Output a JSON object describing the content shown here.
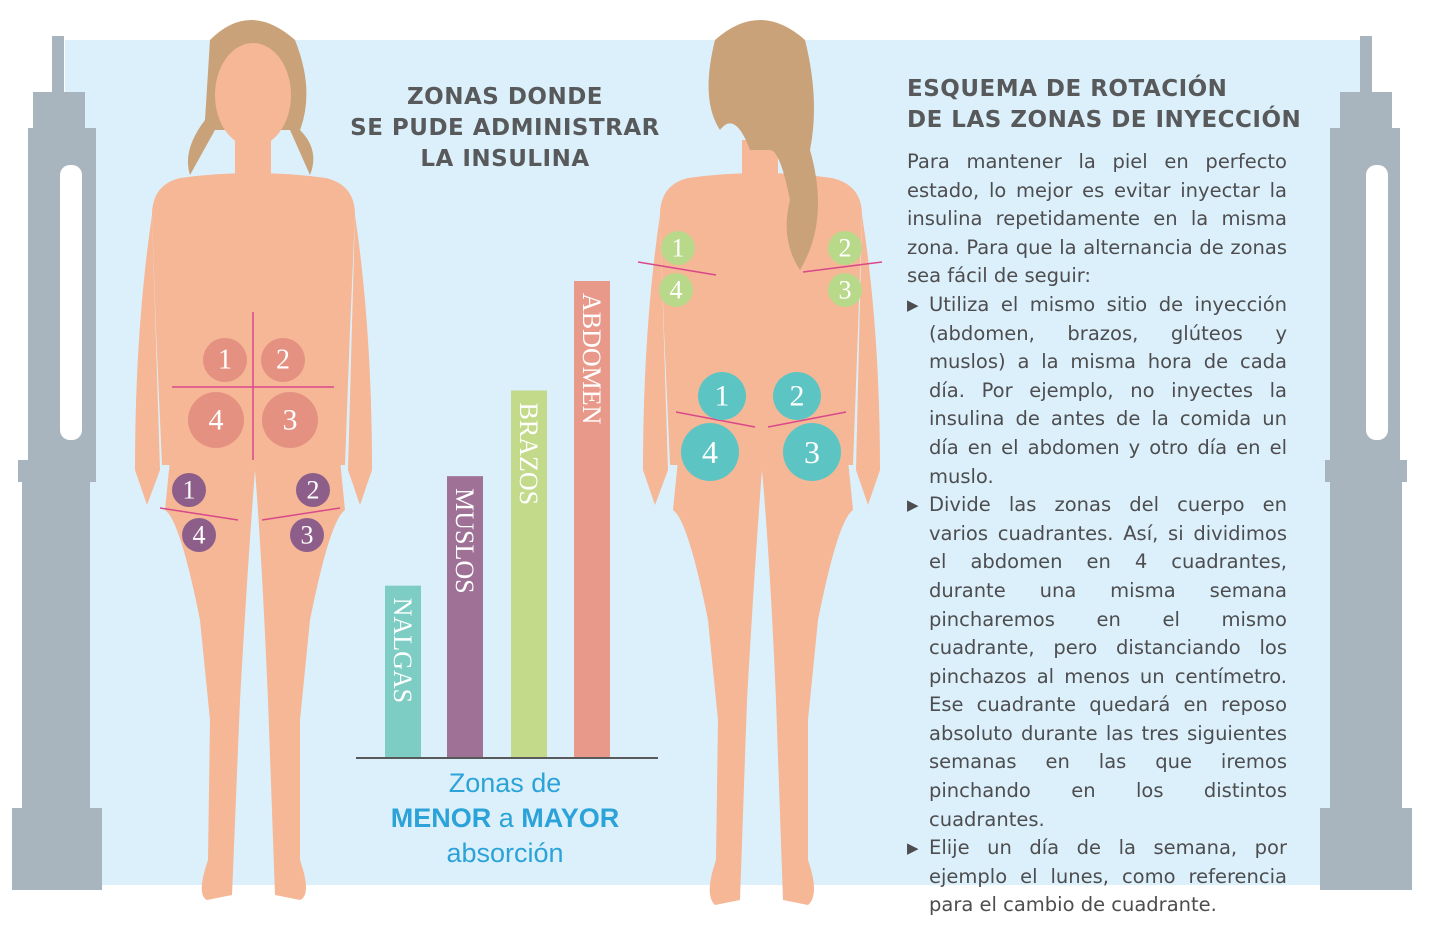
{
  "left_title": [
    "ZONAS DONDE",
    "SE PUDE ADMINISTRAR",
    "LA INSULINA"
  ],
  "right_title": [
    "ESQUEMA DE ROTACIÓN",
    "DE LAS ZONAS DE INYECCIÓN"
  ],
  "intro": "Para mantener la piel en perfecto estado, lo mejor es evitar inyectar la insulina repetidamente en la misma zona. Para que la alternancia de zonas sea fácil de seguir:",
  "bullets": [
    "Utiliza el mismo sitio de inyección (abdomen, brazos, glúteos y muslos) a la misma hora de cada día. Por ejemplo, no inyectes la insulina de antes de la comida un día en el abdomen y otro día en el muslo.",
    "Divide las zonas del cuerpo en varios cuadrantes. Así, si dividimos el abdomen en 4 cuadrantes, durante una misma semana pincharemos en el mismo cuadrante, pero distanciando los pinchazos al menos un centímetro. Ese cuadrante quedará en reposo absoluto durante las tres siguientes semanas en las que iremos pinchando en los distintos cuadrantes.",
    "Elije un día de la semana, por ejemplo el lunes, como referencia para el cambio de cuadrante."
  ],
  "bullet_icon": "triangle-right-icon",
  "caption": {
    "line1": "Zonas de",
    "menor": "MENOR",
    "a": "a",
    "mayor": "MAYOR",
    "line3": "absorción"
  },
  "chart_data": {
    "type": "bar",
    "categories": [
      "NALGAS",
      "MUSLOS",
      "BRAZOS",
      "ABDOMEN"
    ],
    "values": [
      0.36,
      0.59,
      0.77,
      1.0
    ],
    "colors": [
      "#7ecdc4",
      "#a07196",
      "#c3da8a",
      "#e9998a"
    ],
    "title": "",
    "xlabel": "",
    "ylabel": ""
  },
  "zones": {
    "front_abdomen": [
      "1",
      "2",
      "4",
      "3"
    ],
    "front_thighs": [
      "1",
      "2",
      "4",
      "3"
    ],
    "back_arms": [
      "1",
      "4",
      "2",
      "3"
    ],
    "back_buttocks": [
      "1",
      "2",
      "4",
      "3"
    ]
  },
  "colors": {
    "background": "#dcf0fb",
    "skin": "#f5b796",
    "hair": "#c9a27a",
    "pen": "#a9b5be",
    "abdomen": "#e38d80",
    "thighs": "#8e5e8a",
    "arms": "#b9d98a",
    "buttocks": "#5cc5c4",
    "caption": "#2ba3d9"
  }
}
